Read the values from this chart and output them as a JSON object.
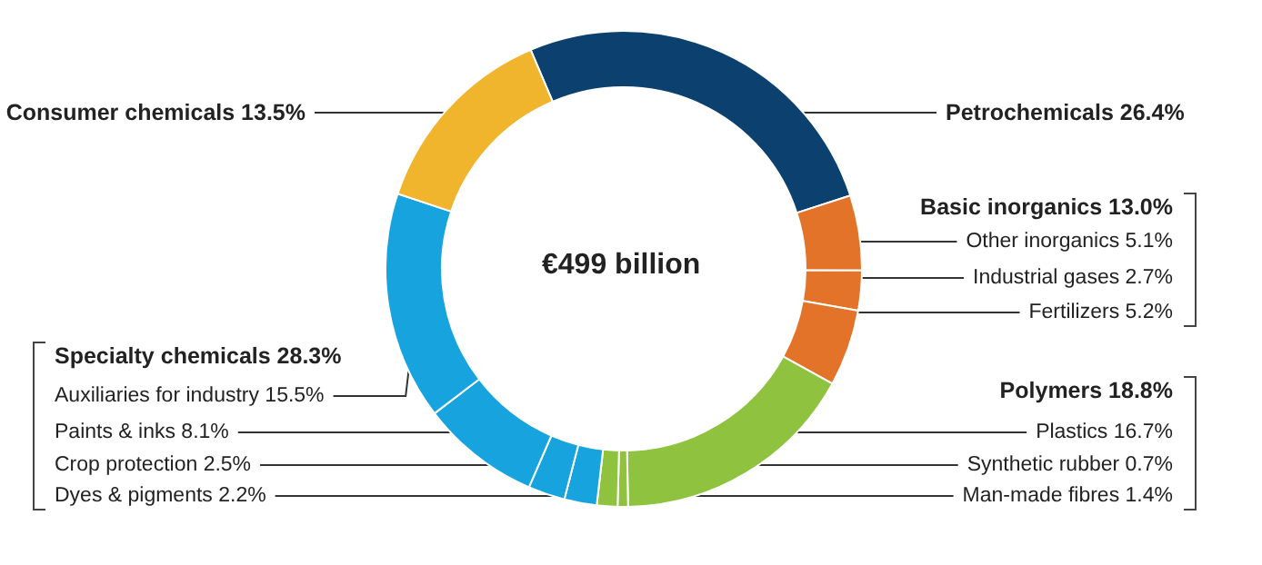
{
  "chart_data": {
    "type": "donut",
    "title": "€499 billion",
    "categories": [
      "Petrochemicals",
      "Other inorganics",
      "Industrial gases",
      "Fertilizers",
      "Plastics",
      "Synthetic rubber",
      "Man-made fibres",
      "Dyes & pigments",
      "Crop protection",
      "Paints & inks",
      "Auxiliaries for industry",
      "Consumer chemicals"
    ],
    "values": [
      26.4,
      5.1,
      2.7,
      5.2,
      16.7,
      0.7,
      1.4,
      2.2,
      2.5,
      8.1,
      15.5,
      13.5
    ],
    "value_labels": [
      "26.4%",
      "5.1%",
      "2.7%",
      "5.2%",
      "16.7%",
      "0.7%",
      "1.4%",
      "2.2%",
      "2.5%",
      "8.1%",
      "15.5%",
      "13.5%"
    ],
    "colors": [
      "#0c416f",
      "#e4732a",
      "#e4732a",
      "#e4732a",
      "#8fc23f",
      "#8fc23f",
      "#8fc23f",
      "#17a4de",
      "#17a4de",
      "#17a4de",
      "#17a4de",
      "#f0b52d"
    ],
    "annotations": [
      "Basic inorganics 13.0%",
      "Polymers 18.8%",
      "Specialty chemicals 28.3%"
    ]
  }
}
